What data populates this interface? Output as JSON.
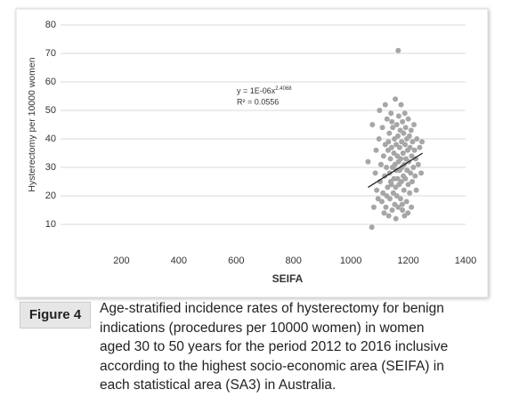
{
  "chart_data": {
    "type": "scatter",
    "xlabel": "SEIFA",
    "ylabel": "Hysterectomy per 10000 women",
    "equation": "y = 1E-06x",
    "equation_exponent": "2.4068",
    "r_squared": "R² = 0.0556",
    "xlim": [
      0,
      1400
    ],
    "xticks": [
      200,
      400,
      600,
      800,
      1000,
      1200,
      1400
    ],
    "ylim": [
      0,
      80
    ],
    "yticks": [
      10,
      20,
      30,
      40,
      50,
      60,
      70,
      80
    ],
    "grid": true,
    "color": "#a6a6a6",
    "trendline": {
      "x": [
        1060,
        1250
      ],
      "y": [
        23,
        35
      ],
      "color": "#222222"
    },
    "x": [
      1165,
      1073,
      1060,
      1075,
      1080,
      1085,
      1088,
      1090,
      1095,
      1098,
      1100,
      1102,
      1105,
      1108,
      1110,
      1112,
      1114,
      1116,
      1118,
      1120,
      1120,
      1122,
      1124,
      1126,
      1128,
      1130,
      1132,
      1134,
      1135,
      1136,
      1138,
      1140,
      1141,
      1142,
      1144,
      1145,
      1146,
      1148,
      1150,
      1150,
      1152,
      1153,
      1154,
      1155,
      1156,
      1158,
      1158,
      1160,
      1160,
      1162,
      1163,
      1164,
      1165,
      1166,
      1167,
      1168,
      1170,
      1170,
      1172,
      1173,
      1174,
      1175,
      1176,
      1177,
      1178,
      1180,
      1180,
      1182,
      1183,
      1184,
      1185,
      1186,
      1188,
      1189,
      1190,
      1191,
      1192,
      1194,
      1195,
      1196,
      1198,
      1200,
      1200,
      1202,
      1204,
      1205,
      1206,
      1208,
      1210,
      1212,
      1214,
      1215,
      1218,
      1220,
      1222,
      1224,
      1226,
      1228,
      1230,
      1235,
      1240,
      1245,
      1248,
      1125,
      1143,
      1157,
      1179,
      1199,
      1211,
      1187,
      1139,
      1131
    ],
    "values": [
      71,
      9,
      32,
      45,
      16,
      28,
      36,
      22,
      19,
      40,
      50,
      25,
      31,
      18,
      44,
      21,
      34,
      14,
      27,
      52,
      38,
      16,
      30,
      47,
      23,
      36,
      13,
      42,
      28,
      19,
      33,
      49,
      24,
      37,
      15,
      30,
      44,
      21,
      35,
      26,
      40,
      17,
      31,
      54,
      23,
      38,
      29,
      45,
      20,
      34,
      26,
      41,
      16,
      32,
      48,
      24,
      37,
      29,
      43,
      19,
      33,
      52,
      25,
      39,
      30,
      46,
      15,
      35,
      27,
      42,
      22,
      31,
      49,
      38,
      26,
      44,
      33,
      18,
      40,
      29,
      36,
      47,
      24,
      32,
      41,
      21,
      37,
      28,
      43,
      34,
      25,
      39,
      30,
      45,
      36,
      27,
      33,
      22,
      40,
      31,
      37,
      28,
      39,
      20,
      46,
      12,
      17,
      14,
      16,
      13,
      25,
      39
    ]
  },
  "caption": {
    "label": "Figure 4",
    "lines": [
      "Age-stratified incidence rates of hysterectomy for benign",
      "indications (procedures per 10000 women) in women",
      "aged 30 to 50 years for the period 2012 to 2016 inclusive",
      "according to the highest socio-economic area (SEIFA) in",
      "each statistical area (SA3) in Australia."
    ]
  }
}
